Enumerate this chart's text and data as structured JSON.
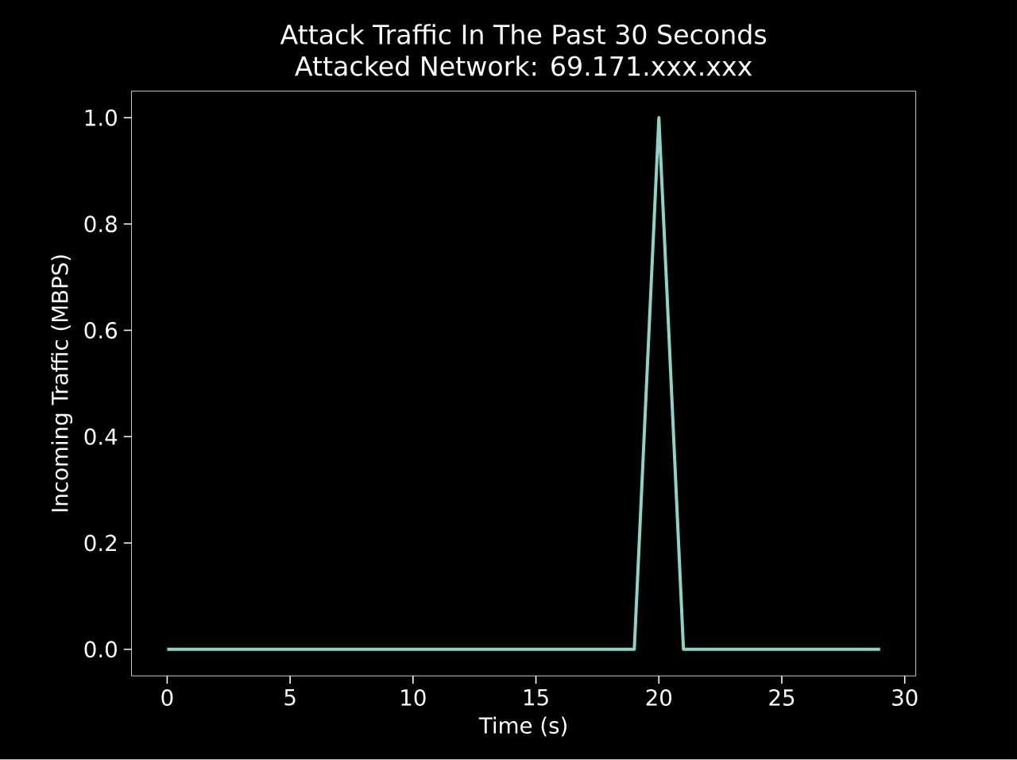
{
  "chart_data": {
    "type": "line",
    "title": "Attack Traffic In The Past 30 Seconds",
    "subtitle": "Attacked Network: 69.171.xxx.xxx",
    "xlabel": "Time (s)",
    "ylabel": "Incoming Traffic (MBPS)",
    "x": [
      0,
      1,
      2,
      3,
      4,
      5,
      6,
      7,
      8,
      9,
      10,
      11,
      12,
      13,
      14,
      15,
      16,
      17,
      18,
      19,
      20,
      21,
      22,
      23,
      24,
      25,
      26,
      27,
      28,
      29
    ],
    "values": [
      0,
      0,
      0,
      0,
      0,
      0,
      0,
      0,
      0,
      0,
      0,
      0,
      0,
      0,
      0,
      0,
      0,
      0,
      0,
      0,
      1.0,
      0,
      0,
      0,
      0,
      0,
      0,
      0,
      0,
      0
    ],
    "color": "#8dd3c7",
    "xlim": [
      -1.45,
      30.45
    ],
    "ylim": [
      -0.05,
      1.05
    ],
    "xticks": [
      0,
      5,
      10,
      15,
      20,
      25,
      30
    ],
    "yticks": [
      {
        "value": 0,
        "label": "0.0"
      },
      {
        "value": 0.2,
        "label": "0.2"
      },
      {
        "value": 0.4,
        "label": "0.4"
      },
      {
        "value": 0.6,
        "label": "0.6"
      },
      {
        "value": 0.8,
        "label": "0.8"
      },
      {
        "value": 1.0,
        "label": "1.0"
      }
    ]
  }
}
